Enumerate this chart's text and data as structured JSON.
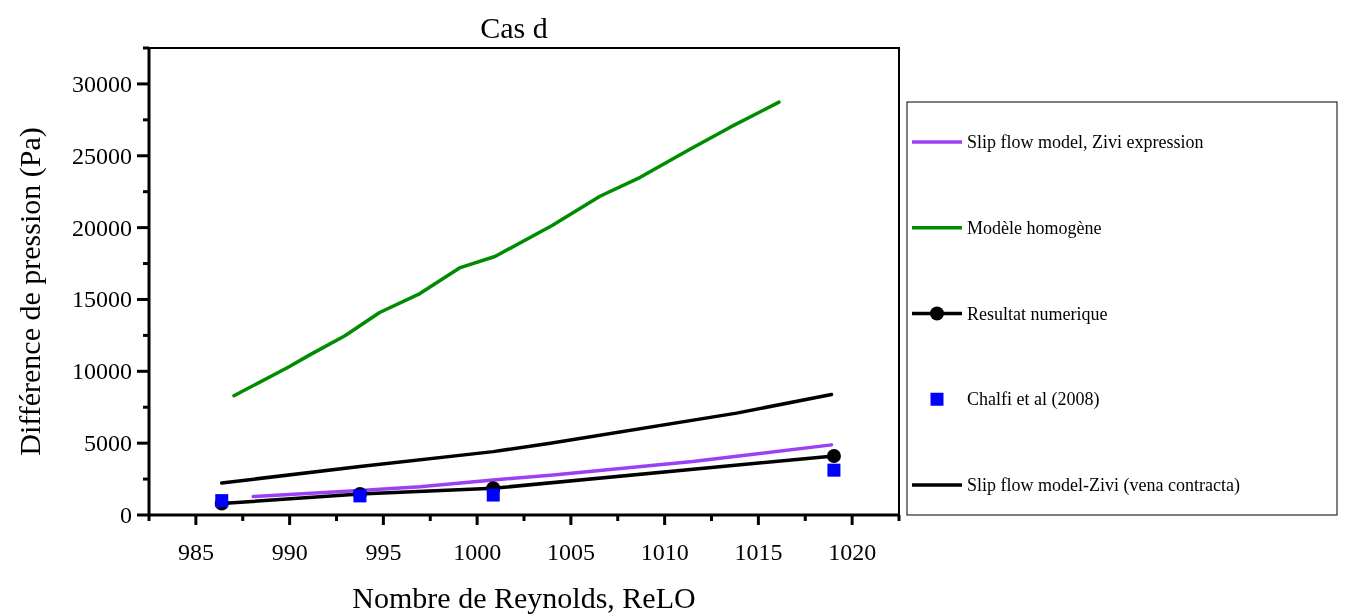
{
  "chart_data": {
    "type": "line",
    "title": "Cas d",
    "xlabel": "Nombre de Reynolds, ReLO",
    "ylabel": "Différence de pression (Pa)",
    "xlim": [
      982.5,
      1022.5
    ],
    "ylim": [
      0,
      32500
    ],
    "xticks": [
      {
        "value": 982.5,
        "label": null
      },
      985,
      {
        "value": 987.5,
        "label": null
      },
      990,
      {
        "value": 992.5,
        "label": null
      },
      995,
      {
        "value": 997.5,
        "label": null
      },
      1000,
      {
        "value": 1002.5,
        "label": null
      },
      1005,
      {
        "value": 1007.5,
        "label": null
      },
      1010,
      {
        "value": 1012.5,
        "label": null
      },
      1015,
      {
        "value": 1017.5,
        "label": null
      },
      1020,
      {
        "value": 1022.5,
        "label": null
      }
    ],
    "yticks": [
      0,
      {
        "value": 2500,
        "label": null
      },
      5000,
      {
        "value": 7500,
        "label": null
      },
      10000,
      {
        "value": 12500,
        "label": null
      },
      15000,
      {
        "value": 17500,
        "label": null
      },
      20000,
      {
        "value": 22500,
        "label": null
      },
      25000,
      {
        "value": 27500,
        "label": null
      },
      30000,
      {
        "value": 32500,
        "label": null
      }
    ],
    "grid": false,
    "legend": "right",
    "series": [
      {
        "name": "Slip flow model, Zivi expression",
        "color": "#9b40f5",
        "marker": "none",
        "x": [
          988.06,
          993.75,
          996.95,
          1000.86,
          1004.06,
          1011.5,
          1018.9
        ],
        "values": [
          1280,
          1700,
          1970,
          2440,
          2790,
          3720,
          4880
        ]
      },
      {
        "name": "Modèle homogène",
        "color": "#008c00",
        "marker": "none",
        "x": [
          987.03,
          989.97,
          991.1,
          992.95,
          994.8,
          996.95,
          999.1,
          1000.95,
          1004.0,
          1006.55,
          1008.7,
          1011.35,
          1013.5,
          1016.1
        ],
        "values": [
          8300,
          10320,
          11160,
          12480,
          14090,
          15410,
          17220,
          17990,
          20150,
          22180,
          23500,
          25450,
          26990,
          28730
        ]
      },
      {
        "name": "Resultat numerique",
        "color": "#000000",
        "marker": "circle",
        "x": [
          986.38,
          993.75,
          1000.86,
          1019.03
        ],
        "values": [
          800,
          1460,
          1860,
          4110
        ]
      },
      {
        "name": "Chalfi et al (2008)",
        "type": "scatter",
        "color": "#0000ff",
        "marker": "square",
        "x": [
          986.38,
          993.75,
          1000.86,
          1019.03
        ],
        "values": [
          1000,
          1330,
          1390,
          3120
        ]
      },
      {
        "name": "Slip flow model-Zivi (vena contracta)",
        "color": "#000000",
        "marker": "none",
        "x": [
          986.38,
          993.75,
          1000.86,
          1003.9,
          1013.84,
          1018.9
        ],
        "values": [
          2230,
          3370,
          4410,
          5000,
          7090,
          8390
        ]
      }
    ]
  }
}
